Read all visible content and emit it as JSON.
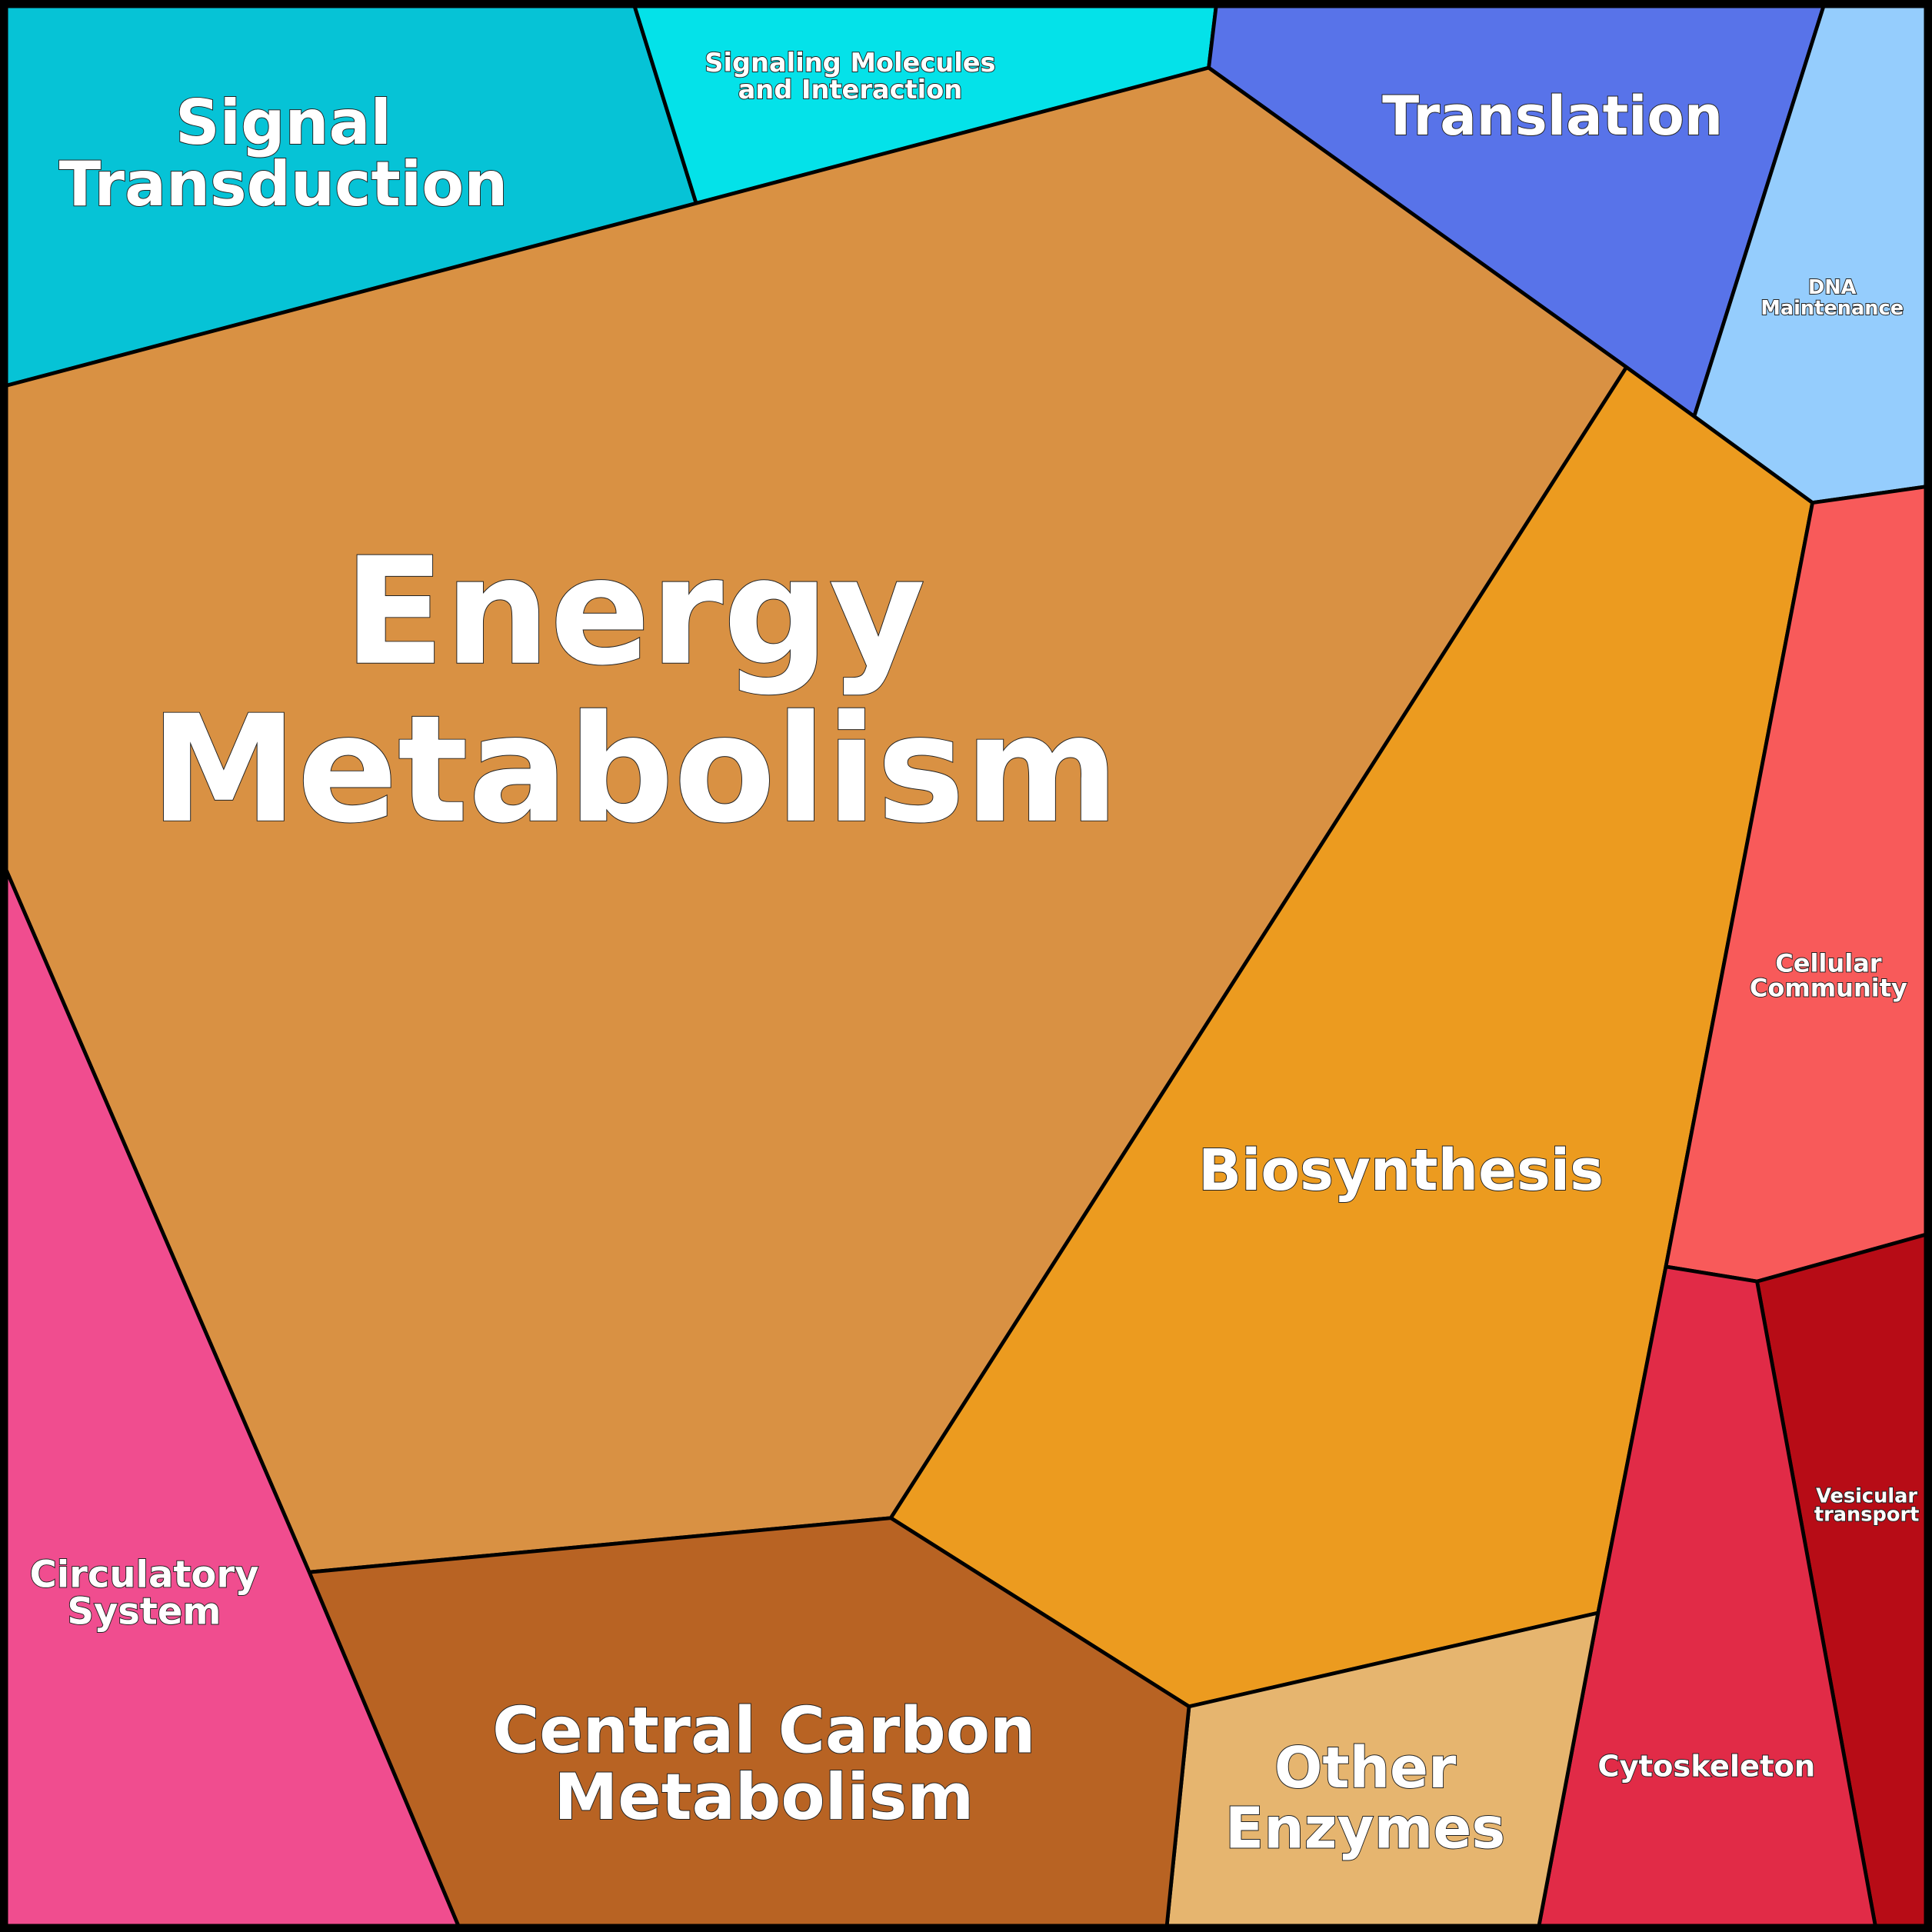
{
  "regions": [
    {
      "label": [
        "Signal",
        "Transduction"
      ]
    },
    {
      "label": [
        "Signaling Molecules",
        "and Interaction"
      ]
    },
    {
      "label": [
        "Translation"
      ]
    },
    {
      "label": [
        "DNA",
        "Maintenance"
      ]
    },
    {
      "label": [
        "Energy",
        "Metabolism"
      ]
    },
    {
      "label": [
        "Biosynthesis"
      ]
    },
    {
      "label": [
        "Cellular",
        "Community"
      ]
    },
    {
      "label": [
        "Vesicular",
        "transport"
      ]
    },
    {
      "label": [
        "Cytoskeleton"
      ]
    },
    {
      "label": [
        "Other",
        "Enzymes"
      ]
    },
    {
      "label": [
        "Central Carbon",
        "Metabolism"
      ]
    },
    {
      "label": [
        "Circulatory",
        "System"
      ]
    }
  ]
}
